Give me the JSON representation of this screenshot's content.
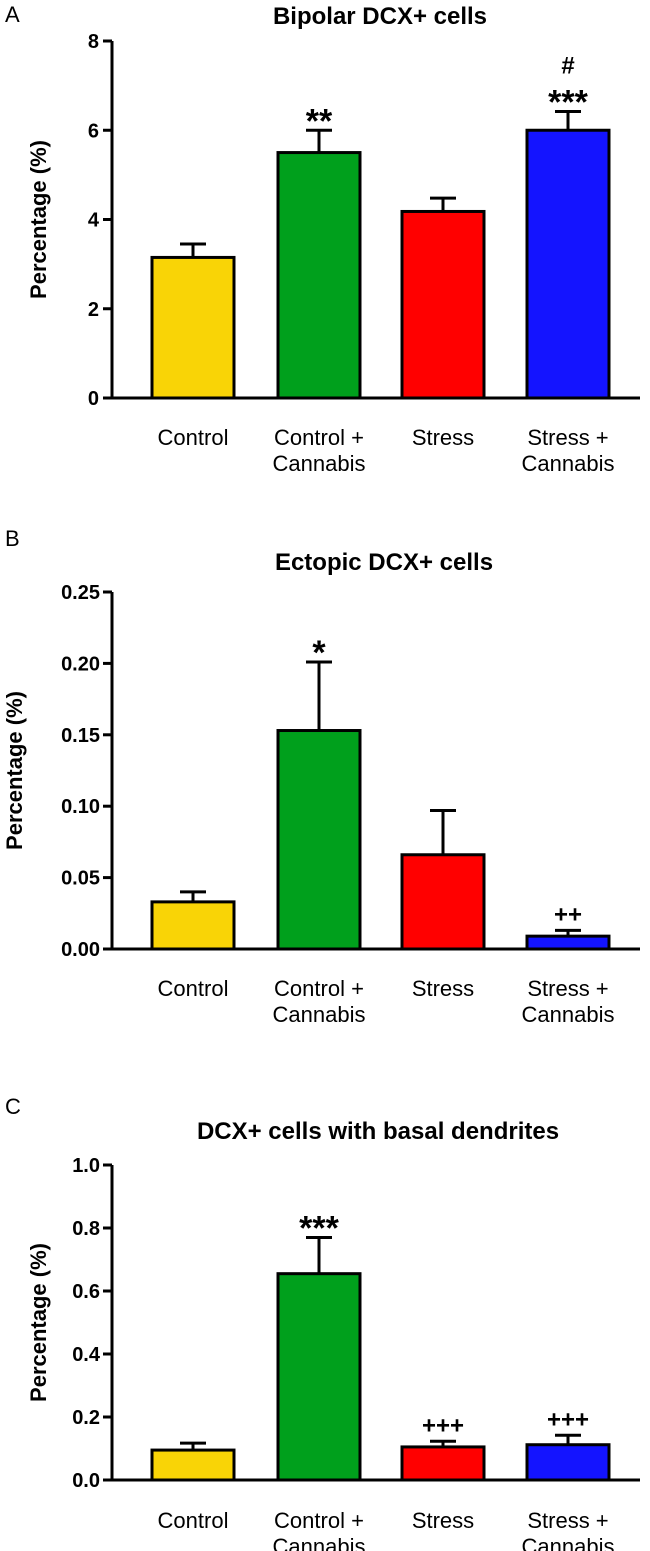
{
  "chart_data": [
    {
      "panel": "A",
      "type": "bar",
      "title": "Bipolar DCX+ cells",
      "ylabel": "Percentage (%)",
      "xlabel": "",
      "ylim": [
        0,
        8
      ],
      "yticks": [
        "0",
        "2",
        "4",
        "6",
        "8"
      ],
      "categories": [
        [
          "Control"
        ],
        [
          "Control +",
          "Cannabis"
        ],
        [
          "Stress"
        ],
        [
          "Stress +",
          "Cannabis"
        ]
      ],
      "values": [
        3.15,
        5.5,
        4.18,
        6.0
      ],
      "errors": [
        0.3,
        0.5,
        0.3,
        0.42
      ],
      "colors": [
        "#f9d406",
        "#00a01c",
        "#ff0000",
        "#1414ff"
      ],
      "annotations": [
        [],
        [
          "**"
        ],
        [],
        [
          "#",
          "***"
        ]
      ]
    },
    {
      "panel": "B",
      "type": "bar",
      "title": "Ectopic DCX+ cells",
      "ylabel": "Percentage (%)",
      "xlabel": "",
      "ylim": [
        0,
        0.25
      ],
      "yticks": [
        "0.00",
        "0.05",
        "0.10",
        "0.15",
        "0.20",
        "0.25"
      ],
      "categories": [
        [
          "Control"
        ],
        [
          "Control +",
          "Cannabis"
        ],
        [
          "Stress"
        ],
        [
          "Stress +",
          "Cannabis"
        ]
      ],
      "values": [
        0.033,
        0.153,
        0.066,
        0.009
      ],
      "errors": [
        0.007,
        0.048,
        0.031,
        0.004
      ],
      "colors": [
        "#f9d406",
        "#00a01c",
        "#ff0000",
        "#1414ff"
      ],
      "annotations": [
        [],
        [
          "*"
        ],
        [],
        [
          "++"
        ]
      ]
    },
    {
      "panel": "C",
      "type": "bar",
      "title": "DCX+ cells with basal dendrites",
      "ylabel": "Percentage (%)",
      "xlabel": "",
      "ylim": [
        0,
        1.0
      ],
      "yticks": [
        "0.0",
        "0.2",
        "0.4",
        "0.6",
        "0.8",
        "1.0"
      ],
      "categories": [
        [
          "Control"
        ],
        [
          "Control +",
          "Cannabis"
        ],
        [
          "Stress"
        ],
        [
          "Stress +",
          "Cannabis"
        ]
      ],
      "values": [
        0.095,
        0.655,
        0.105,
        0.112
      ],
      "errors": [
        0.022,
        0.115,
        0.018,
        0.03
      ],
      "colors": [
        "#f9d406",
        "#00a01c",
        "#ff0000",
        "#1414ff"
      ],
      "annotations": [
        [],
        [
          "***"
        ],
        [
          "+++"
        ],
        [
          "+++"
        ]
      ]
    }
  ]
}
